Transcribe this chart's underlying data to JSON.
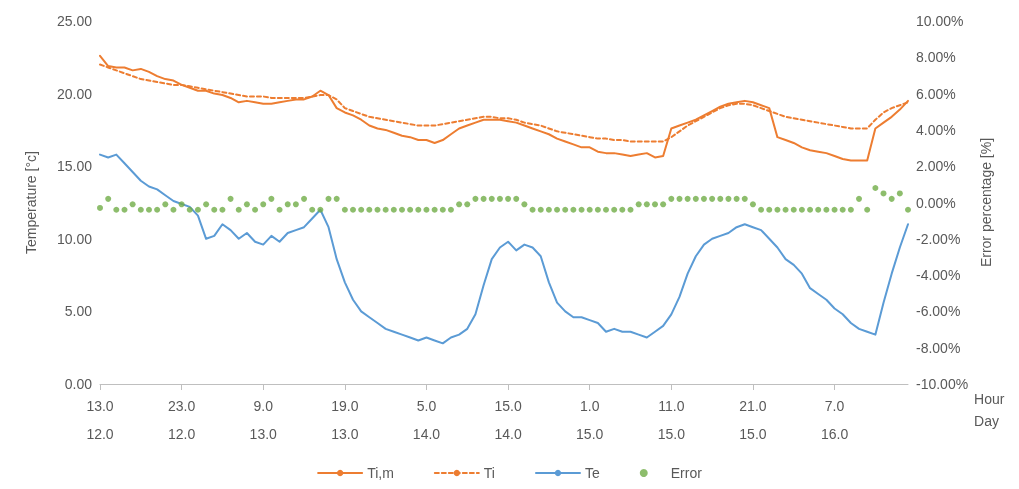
{
  "chart_data": {
    "type": "line",
    "xlabel": "Hour\nDay",
    "ylabel": "Temperature [°c]",
    "y2label": "Error percentage [%]",
    "categories": [
      "13.0\n12.0",
      null,
      null,
      null,
      null,
      null,
      null,
      null,
      null,
      null,
      "23.0\n12.0",
      null,
      null,
      null,
      null,
      null,
      null,
      null,
      null,
      null,
      "9.0\n13.0",
      null,
      null,
      null,
      null,
      null,
      null,
      null,
      null,
      null,
      "19.0\n13.0",
      null,
      null,
      null,
      null,
      null,
      null,
      null,
      null,
      null,
      "5.0\n14.0",
      null,
      null,
      null,
      null,
      null,
      null,
      null,
      null,
      null,
      "15.0\n14.0",
      null,
      null,
      null,
      null,
      null,
      null,
      null,
      null,
      null,
      "1.0\n15.0",
      null,
      null,
      null,
      null,
      null,
      null,
      null,
      null,
      null,
      "11.0\n15.0",
      null,
      null,
      null,
      null,
      null,
      null,
      null,
      null,
      null,
      "21.0\n15.0",
      null,
      null,
      null,
      null,
      null,
      null,
      null,
      null,
      null,
      "7.0\n16.0",
      null,
      null,
      null,
      null,
      null,
      null,
      null,
      null,
      null
    ],
    "ylim": [
      0,
      25
    ],
    "yticks": [
      {
        "value": 0,
        "label": "0.00"
      },
      {
        "value": 5,
        "label": "5.00"
      },
      {
        "value": 10,
        "label": "10.00"
      },
      {
        "value": 15,
        "label": "15.00"
      },
      {
        "value": 20,
        "label": "20.00"
      },
      {
        "value": 25,
        "label": "25.00"
      }
    ],
    "y2lim": [
      -10,
      10
    ],
    "y2ticks": [
      {
        "value": -10,
        "label": "-10.00%"
      },
      {
        "value": -8,
        "label": "-8.00%"
      },
      {
        "value": -6,
        "label": "-6.00%"
      },
      {
        "value": -4,
        "label": "-4.00%"
      },
      {
        "value": -2,
        "label": "-2.00%"
      },
      {
        "value": 0,
        "label": "0.00%"
      },
      {
        "value": 2,
        "label": "2.00%"
      },
      {
        "value": 4,
        "label": "4.00%"
      },
      {
        "value": 6,
        "label": "6.00%"
      },
      {
        "value": 8,
        "label": "8.00%"
      },
      {
        "value": 10,
        "label": "10.00%"
      }
    ],
    "grid": false,
    "legend": "bottom",
    "series": [
      {
        "name": "Ti,m",
        "marker": "none",
        "line_style": "solid",
        "color": "#ed7d31",
        "values": [
          22.6,
          21.9,
          21.8,
          21.8,
          21.6,
          21.7,
          21.5,
          21.2,
          21.0,
          20.9,
          20.6,
          20.4,
          20.2,
          20.2,
          20.0,
          19.9,
          19.7,
          19.4,
          19.5,
          19.4,
          19.3,
          19.3,
          19.4,
          19.5,
          19.6,
          19.6,
          19.8,
          20.2,
          19.9,
          19.0,
          18.7,
          18.5,
          18.2,
          17.8,
          17.6,
          17.5,
          17.3,
          17.1,
          17.0,
          16.8,
          16.8,
          16.6,
          16.8,
          17.2,
          17.6,
          17.8,
          18.0,
          18.2,
          18.2,
          18.2,
          18.1,
          18.0,
          17.8,
          17.6,
          17.4,
          17.2,
          16.9,
          16.7,
          16.5,
          16.3,
          16.3,
          16.0,
          15.9,
          15.9,
          15.8,
          15.7,
          15.8,
          15.9,
          15.6,
          15.7,
          17.6,
          17.8,
          18.0,
          18.2,
          18.5,
          18.8,
          19.1,
          19.3,
          19.4,
          19.5,
          19.4,
          19.2,
          19.0,
          17.0,
          16.8,
          16.6,
          16.3,
          16.1,
          16.0,
          15.9,
          15.7,
          15.5,
          15.4,
          15.4,
          15.4,
          17.6,
          18.0,
          18.4,
          18.9,
          19.5
        ]
      },
      {
        "name": "Ti",
        "marker": "none",
        "line_style": "dashed",
        "color": "#ed7d31",
        "values": [
          22.0,
          21.8,
          21.6,
          21.4,
          21.2,
          21.0,
          20.9,
          20.8,
          20.7,
          20.6,
          20.6,
          20.5,
          20.4,
          20.3,
          20.2,
          20.1,
          20.0,
          19.9,
          19.8,
          19.8,
          19.8,
          19.7,
          19.7,
          19.7,
          19.7,
          19.7,
          19.8,
          19.9,
          19.9,
          19.6,
          19.0,
          18.8,
          18.6,
          18.4,
          18.3,
          18.2,
          18.1,
          18.0,
          17.9,
          17.8,
          17.8,
          17.8,
          17.9,
          18.0,
          18.1,
          18.2,
          18.3,
          18.4,
          18.4,
          18.3,
          18.3,
          18.2,
          18.0,
          17.9,
          17.8,
          17.6,
          17.4,
          17.3,
          17.2,
          17.1,
          17.0,
          16.9,
          16.9,
          16.8,
          16.8,
          16.7,
          16.7,
          16.7,
          16.7,
          16.7,
          17.0,
          17.4,
          17.8,
          18.1,
          18.4,
          18.7,
          19.0,
          19.2,
          19.3,
          19.3,
          19.2,
          19.0,
          18.8,
          18.6,
          18.4,
          18.3,
          18.2,
          18.1,
          18.0,
          17.9,
          17.8,
          17.7,
          17.6,
          17.6,
          17.6,
          18.2,
          18.7,
          19.0,
          19.2,
          19.4
        ]
      },
      {
        "name": "Te",
        "marker": "none",
        "line_style": "solid",
        "color": "#5b9bd5",
        "values": [
          15.8,
          15.6,
          15.8,
          15.2,
          14.6,
          14.0,
          13.6,
          13.4,
          13.0,
          12.6,
          12.4,
          12.2,
          11.6,
          10.0,
          10.2,
          11.0,
          10.6,
          10.0,
          10.4,
          9.8,
          9.6,
          10.2,
          9.8,
          10.4,
          10.6,
          10.8,
          11.4,
          12.0,
          10.8,
          8.6,
          7.0,
          5.8,
          5.0,
          4.6,
          4.2,
          3.8,
          3.6,
          3.4,
          3.2,
          3.0,
          3.2,
          3.0,
          2.8,
          3.2,
          3.4,
          3.8,
          4.8,
          6.8,
          8.6,
          9.4,
          9.8,
          9.2,
          9.6,
          9.4,
          8.8,
          7.0,
          5.6,
          5.0,
          4.6,
          4.6,
          4.4,
          4.2,
          3.6,
          3.8,
          3.6,
          3.6,
          3.4,
          3.2,
          3.6,
          4.0,
          4.8,
          6.0,
          7.6,
          8.8,
          9.6,
          10.0,
          10.2,
          10.4,
          10.8,
          11.0,
          10.8,
          10.6,
          10.0,
          9.4,
          8.6,
          8.2,
          7.6,
          6.6,
          6.2,
          5.8,
          5.2,
          4.8,
          4.2,
          3.8,
          3.6,
          3.4,
          5.6,
          7.6,
          9.4,
          11.0
        ]
      },
      {
        "name": "Error",
        "type": "scatter",
        "axis": "y2",
        "marker": "circle",
        "color": "#70ad47",
        "values": [
          -0.3,
          0.2,
          -0.4,
          -0.4,
          -0.1,
          -0.4,
          -0.4,
          -0.4,
          -0.1,
          -0.4,
          -0.1,
          -0.4,
          -0.4,
          -0.1,
          -0.4,
          -0.4,
          0.2,
          -0.4,
          -0.1,
          -0.4,
          -0.1,
          0.2,
          -0.4,
          -0.1,
          -0.1,
          0.2,
          -0.4,
          -0.4,
          0.2,
          0.2,
          -0.4,
          -0.4,
          -0.4,
          -0.4,
          -0.4,
          -0.4,
          -0.4,
          -0.4,
          -0.4,
          -0.4,
          -0.4,
          -0.4,
          -0.4,
          -0.4,
          -0.1,
          -0.1,
          0.2,
          0.2,
          0.2,
          0.2,
          0.2,
          0.2,
          -0.1,
          -0.4,
          -0.4,
          -0.4,
          -0.4,
          -0.4,
          -0.4,
          -0.4,
          -0.4,
          -0.4,
          -0.4,
          -0.4,
          -0.4,
          -0.4,
          -0.1,
          -0.1,
          -0.1,
          -0.1,
          0.2,
          0.2,
          0.2,
          0.2,
          0.2,
          0.2,
          0.2,
          0.2,
          0.2,
          0.2,
          -0.1,
          -0.4,
          -0.4,
          -0.4,
          -0.4,
          -0.4,
          -0.4,
          -0.4,
          -0.4,
          -0.4,
          -0.4,
          -0.4,
          -0.4,
          0.2,
          -0.4,
          0.8,
          0.5,
          0.2,
          0.5,
          -0.4
        ]
      }
    ]
  }
}
